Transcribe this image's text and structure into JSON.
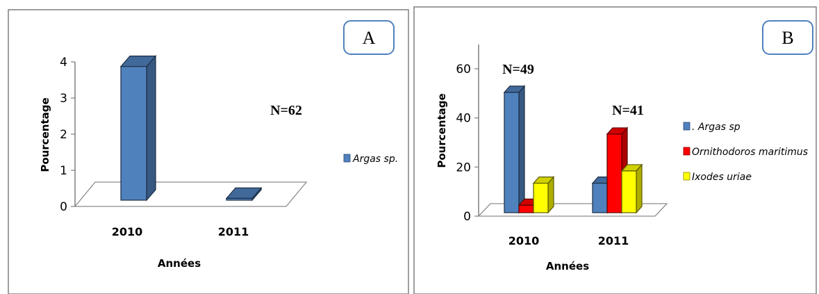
{
  "chart_data": [
    {
      "panel_label": "A",
      "type": "bar",
      "categories": [
        "2010",
        "2011"
      ],
      "series": [
        {
          "name": "Argas sp.",
          "values": [
            3.7,
            0.05
          ],
          "color": "#4f81bd"
        }
      ],
      "xlabel": "Années",
      "ylabel": "Pourcentage",
      "yticks": [
        "0",
        "1",
        "2",
        "3",
        "4"
      ],
      "ylim": [
        0,
        4
      ],
      "annotations": [
        {
          "text": "N=62",
          "category": "2011"
        }
      ],
      "legend": "right",
      "grid": false
    },
    {
      "panel_label": "B",
      "type": "bar",
      "categories": [
        "2010",
        "2011"
      ],
      "series": [
        {
          "name": ". Argas sp",
          "values": [
            49,
            12
          ],
          "color": "#4f81bd"
        },
        {
          "name": "Ornithodoros maritimus",
          "values": [
            3,
            32
          ],
          "color": "#ff0000"
        },
        {
          "name": "Ixodes uriae",
          "values": [
            12,
            17
          ],
          "color": "#ffff00"
        }
      ],
      "xlabel": "Années",
      "ylabel": "Pourcentage",
      "yticks": [
        "0",
        "20",
        "40",
        "60"
      ],
      "ylim": [
        0,
        60
      ],
      "annotations": [
        {
          "text": "N=49",
          "category": "2010"
        },
        {
          "text": "N=41",
          "category": "2011"
        }
      ],
      "legend": "right",
      "grid": false
    }
  ]
}
